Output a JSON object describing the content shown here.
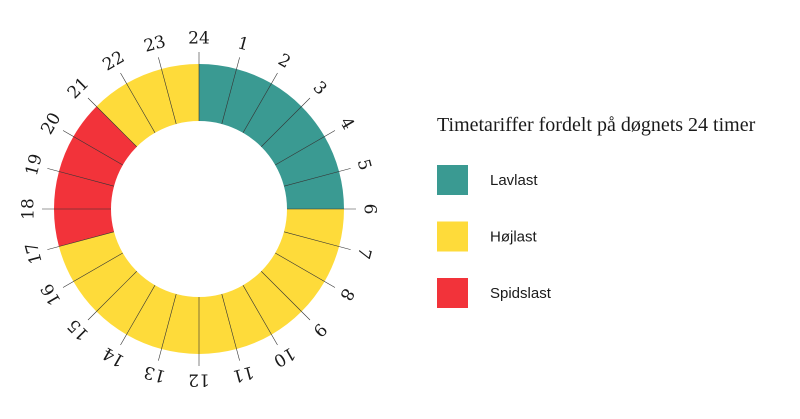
{
  "title": "Timetariffer fordelt på døgnets 24 timer",
  "tariffs": [
    {
      "name": "Lavlast",
      "color": "#3a9a92",
      "hours": [
        1,
        2,
        3,
        4,
        5,
        6
      ]
    },
    {
      "name": "Højlast",
      "color": "#fedb3a",
      "hours": [
        7,
        8,
        9,
        10,
        11,
        12,
        13,
        14,
        15,
        16,
        17,
        22,
        23,
        24
      ]
    },
    {
      "name": "Spidslast",
      "color": "#f2333a",
      "hours": [
        18,
        19,
        20,
        21
      ]
    }
  ]
}
